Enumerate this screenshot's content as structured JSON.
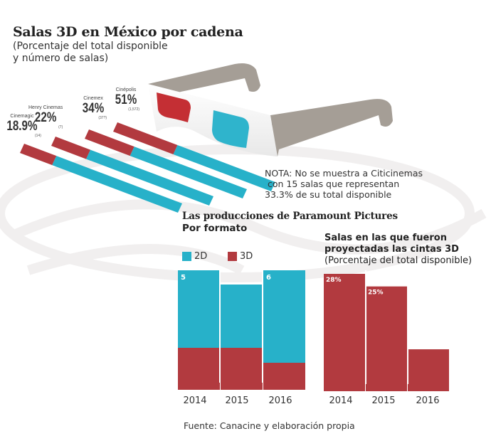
{
  "header": {
    "title": "Salas 3D en México por cadena",
    "subtitle_line1": "(Porcentaje del total disponible",
    "subtitle_line2": "y número de salas)"
  },
  "colors": {
    "red_3d": "#b23a3f",
    "cyan_2d": "#27b1c9",
    "frame_gray": "#a59e96",
    "text": "#222222"
  },
  "chains": [
    {
      "name": "Cinemagic",
      "percent_label": "18.9%",
      "percent": 18.9,
      "count_label": "(14)"
    },
    {
      "name": "Henry Cinemas",
      "percent_label": "22%",
      "percent": 22,
      "count_label": "(7)"
    },
    {
      "name": "Cinemex",
      "percent_label": "34%",
      "percent": 34,
      "count_label": "(37?)"
    },
    {
      "name": "Cinépolis",
      "percent_label": "51%",
      "percent": 51,
      "count_label": "(1,572)"
    }
  ],
  "nota": {
    "line1": "NOTA: No se muestra a Citicinemas",
    "line2": " con 15 salas que representan",
    "line3": "33.3% de su total disponible"
  },
  "paramount": {
    "title": "Las producciones de Paramount Pictures",
    "subtitle": "Por formato",
    "legend": [
      {
        "label": "2D",
        "color": "#27b1c9"
      },
      {
        "label": "3D",
        "color": "#b23a3f"
      }
    ]
  },
  "salas3d": {
    "title_line1": "Salas en las que fueron",
    "title_line2": "proyectadas las cintas 3D",
    "subtitle": "(Porcentaje del total disponible)"
  },
  "chart_data": [
    {
      "type": "pie",
      "title": "Salas 3D en México por cadena",
      "subtitle": "(Porcentaje del total disponible y número de salas)",
      "categories": [
        "Cinemagic",
        "Henry Cinemas",
        "Cinemex",
        "Cinépolis"
      ],
      "values": [
        18.9,
        22,
        34,
        51
      ],
      "unit": "% 3D of total rooms",
      "note": "Stylized as diagonal stripes: red = 3D share, cyan = remainder"
    },
    {
      "type": "bar",
      "stacked": true,
      "title": "Las producciones de Paramount Pictures",
      "subtitle": "Por formato",
      "categories": [
        "2014",
        "2015",
        "2016"
      ],
      "series": [
        {
          "name": "3D",
          "values": [
            2,
            2,
            1.5
          ]
        },
        {
          "name": "2D",
          "values": [
            3,
            2,
            4.5
          ]
        }
      ],
      "total_labels": [
        "5",
        "",
        "6"
      ],
      "legend": "top-left"
    },
    {
      "type": "bar",
      "title": "Salas en las que fueron proyectadas las cintas 3D",
      "subtitle": "(Porcentaje del total disponible)",
      "categories": [
        "2014",
        "2015",
        "2016"
      ],
      "values": [
        28,
        25,
        10
      ],
      "data_labels": [
        "28%",
        "25%",
        ""
      ],
      "ylim": [
        0,
        30
      ]
    }
  ],
  "footer": {
    "source": "Fuente: Canacine y elaboración propia"
  }
}
